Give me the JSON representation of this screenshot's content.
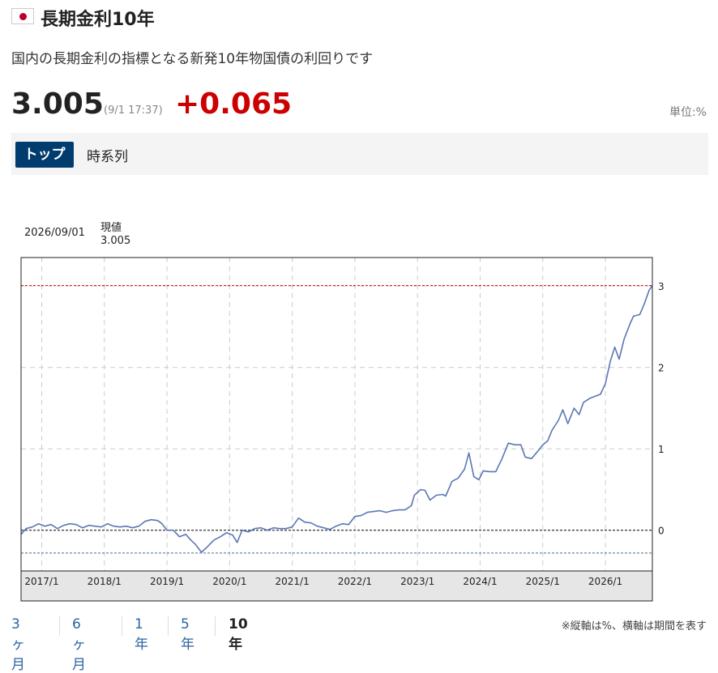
{
  "header": {
    "title": "長期金利10年",
    "description": "国内の長期金利の指標となる新発10年物国債の利回りです",
    "price": "3.005",
    "time": "(9/1 17:37)",
    "change": "+0.065",
    "unit": "単位:%"
  },
  "tabs": {
    "top": "トップ",
    "timeseries": "時系列"
  },
  "hover": {
    "date": "2026/09/01",
    "label": "現値",
    "value": "3.005"
  },
  "periods": [
    "3ヶ月",
    "6ヶ月",
    "1年",
    "5年",
    "10年"
  ],
  "active_period": "10年",
  "note": "※縦軸は%、横軸は期間を表す",
  "colors": {
    "line": "#5a78b4",
    "up": "#cc0000",
    "tab_active": "#003c6e",
    "current_line": "#cc0000",
    "min_line": "#4a6b8a"
  },
  "chart_data": {
    "type": "line",
    "ylim": [
      -0.5,
      3.35
    ],
    "yticks": [
      0,
      1,
      2,
      3
    ],
    "xticks": [
      {
        "label": "2017/1",
        "x": 2017.0
      },
      {
        "label": "2018/1",
        "x": 2018.0
      },
      {
        "label": "2019/1",
        "x": 2019.0
      },
      {
        "label": "2020/1",
        "x": 2020.0
      },
      {
        "label": "2021/1",
        "x": 2021.0
      },
      {
        "label": "2022/1",
        "x": 2022.0
      },
      {
        "label": "2023/1",
        "x": 2023.0
      },
      {
        "label": "2024/1",
        "x": 2024.0
      },
      {
        "label": "2025/1",
        "x": 2025.0
      },
      {
        "label": "2026/1",
        "x": 2026.0
      }
    ],
    "xlim": [
      2016.67,
      2026.75
    ],
    "reference_lines": {
      "current": 3.005,
      "zero": 0,
      "min": -0.28
    },
    "series": [
      {
        "points": [
          [
            2016.67,
            -0.05
          ],
          [
            2016.75,
            0.02
          ],
          [
            2016.85,
            0.04
          ],
          [
            2016.95,
            0.08
          ],
          [
            2017.05,
            0.05
          ],
          [
            2017.15,
            0.07
          ],
          [
            2017.25,
            0.02
          ],
          [
            2017.35,
            0.06
          ],
          [
            2017.45,
            0.08
          ],
          [
            2017.55,
            0.07
          ],
          [
            2017.65,
            0.03
          ],
          [
            2017.75,
            0.06
          ],
          [
            2017.85,
            0.05
          ],
          [
            2017.95,
            0.04
          ],
          [
            2018.05,
            0.08
          ],
          [
            2018.15,
            0.05
          ],
          [
            2018.25,
            0.04
          ],
          [
            2018.35,
            0.05
          ],
          [
            2018.45,
            0.03
          ],
          [
            2018.55,
            0.05
          ],
          [
            2018.65,
            0.11
          ],
          [
            2018.75,
            0.13
          ],
          [
            2018.85,
            0.12
          ],
          [
            2018.92,
            0.08
          ],
          [
            2019.0,
            0.0
          ],
          [
            2019.1,
            0.0
          ],
          [
            2019.2,
            -0.08
          ],
          [
            2019.3,
            -0.05
          ],
          [
            2019.38,
            -0.12
          ],
          [
            2019.45,
            -0.17
          ],
          [
            2019.55,
            -0.27
          ],
          [
            2019.65,
            -0.2
          ],
          [
            2019.75,
            -0.12
          ],
          [
            2019.85,
            -0.08
          ],
          [
            2019.95,
            -0.03
          ],
          [
            2020.05,
            -0.06
          ],
          [
            2020.12,
            -0.15
          ],
          [
            2020.2,
            0.0
          ],
          [
            2020.3,
            -0.02
          ],
          [
            2020.4,
            0.02
          ],
          [
            2020.5,
            0.03
          ],
          [
            2020.6,
            0.0
          ],
          [
            2020.7,
            0.03
          ],
          [
            2020.8,
            0.02
          ],
          [
            2020.9,
            0.02
          ],
          [
            2021.0,
            0.04
          ],
          [
            2021.1,
            0.15
          ],
          [
            2021.2,
            0.1
          ],
          [
            2021.3,
            0.09
          ],
          [
            2021.4,
            0.05
          ],
          [
            2021.5,
            0.03
          ],
          [
            2021.6,
            0.01
          ],
          [
            2021.7,
            0.05
          ],
          [
            2021.8,
            0.08
          ],
          [
            2021.9,
            0.07
          ],
          [
            2022.0,
            0.17
          ],
          [
            2022.1,
            0.18
          ],
          [
            2022.2,
            0.22
          ],
          [
            2022.3,
            0.23
          ],
          [
            2022.4,
            0.24
          ],
          [
            2022.5,
            0.22
          ],
          [
            2022.6,
            0.24
          ],
          [
            2022.7,
            0.25
          ],
          [
            2022.8,
            0.25
          ],
          [
            2022.9,
            0.3
          ],
          [
            2022.95,
            0.43
          ],
          [
            2023.05,
            0.5
          ],
          [
            2023.12,
            0.49
          ],
          [
            2023.2,
            0.37
          ],
          [
            2023.3,
            0.43
          ],
          [
            2023.4,
            0.44
          ],
          [
            2023.45,
            0.42
          ],
          [
            2023.55,
            0.6
          ],
          [
            2023.65,
            0.64
          ],
          [
            2023.75,
            0.75
          ],
          [
            2023.82,
            0.95
          ],
          [
            2023.9,
            0.66
          ],
          [
            2023.98,
            0.62
          ],
          [
            2024.05,
            0.73
          ],
          [
            2024.15,
            0.72
          ],
          [
            2024.25,
            0.72
          ],
          [
            2024.35,
            0.88
          ],
          [
            2024.45,
            1.07
          ],
          [
            2024.55,
            1.05
          ],
          [
            2024.65,
            1.05
          ],
          [
            2024.72,
            0.9
          ],
          [
            2024.82,
            0.88
          ],
          [
            2024.92,
            0.97
          ],
          [
            2025.0,
            1.05
          ],
          [
            2025.08,
            1.1
          ],
          [
            2025.15,
            1.23
          ],
          [
            2025.25,
            1.35
          ],
          [
            2025.32,
            1.48
          ],
          [
            2025.4,
            1.31
          ],
          [
            2025.5,
            1.5
          ],
          [
            2025.58,
            1.42
          ],
          [
            2025.65,
            1.57
          ],
          [
            2025.75,
            1.62
          ],
          [
            2025.85,
            1.65
          ],
          [
            2025.92,
            1.67
          ],
          [
            2026.0,
            1.8
          ],
          [
            2026.08,
            2.08
          ],
          [
            2026.15,
            2.25
          ],
          [
            2026.22,
            2.1
          ],
          [
            2026.3,
            2.35
          ],
          [
            2026.4,
            2.55
          ],
          [
            2026.45,
            2.63
          ],
          [
            2026.55,
            2.65
          ],
          [
            2026.62,
            2.78
          ],
          [
            2026.7,
            2.95
          ],
          [
            2026.75,
            3.005
          ]
        ]
      }
    ]
  }
}
